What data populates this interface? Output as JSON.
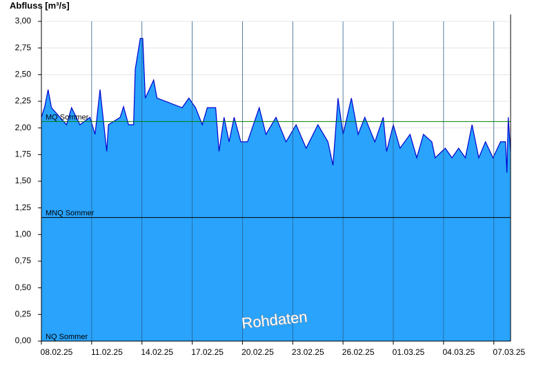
{
  "chart_data": {
    "type": "area",
    "y_label": "Abfluss [m³/s]",
    "watermark": "Rohdaten",
    "x": [
      0,
      0.2,
      0.4,
      0.6,
      1.5,
      1.8,
      2.3,
      2.9,
      3.2,
      3.5,
      3.9,
      4.0,
      4.7,
      4.9,
      5.2,
      5.5,
      5.6,
      5.9,
      6.05,
      6.2,
      6.7,
      6.9,
      8.4,
      8.8,
      9.2,
      9.6,
      9.9,
      10.4,
      10.6,
      10.9,
      11.2,
      11.5,
      11.9,
      12.3,
      13.0,
      13.4,
      14.0,
      14.6,
      15.2,
      15.8,
      16.5,
      17.1,
      17.4,
      17.7,
      18.0,
      18.5,
      18.9,
      19.3,
      19.9,
      20.4,
      20.6,
      21.0,
      21.4,
      22.0,
      22.4,
      22.8,
      23.3,
      23.5,
      24.1,
      24.5,
      24.9,
      25.3,
      25.7,
      26.1,
      26.5,
      26.95,
      27.4,
      27.7,
      27.78,
      27.86,
      28
    ],
    "series": [
      {
        "name": "Abfluss",
        "color": "#0000cc",
        "fill": "#29a3fc",
        "values": [
          2.1,
          2.2,
          2.36,
          2.19,
          2.03,
          2.19,
          2.03,
          2.1,
          1.94,
          2.36,
          1.78,
          2.03,
          2.1,
          2.2,
          2.03,
          2.03,
          2.55,
          2.84,
          2.84,
          2.28,
          2.45,
          2.28,
          2.19,
          2.28,
          2.19,
          2.03,
          2.19,
          2.19,
          1.78,
          2.1,
          1.87,
          2.1,
          1.87,
          1.87,
          2.19,
          1.94,
          2.1,
          1.87,
          2.03,
          1.81,
          2.03,
          1.87,
          1.65,
          2.28,
          1.94,
          2.28,
          1.94,
          2.1,
          1.87,
          2.1,
          1.78,
          2.03,
          1.81,
          1.94,
          1.72,
          1.94,
          1.87,
          1.72,
          1.81,
          1.72,
          1.81,
          1.72,
          2.03,
          1.72,
          1.87,
          1.72,
          1.87,
          1.87,
          1.58,
          2.1,
          1.78
        ]
      }
    ],
    "xlim": [
      0,
      28
    ],
    "xticks": [
      {
        "value": 0,
        "label": "08.02.25"
      },
      {
        "value": 3,
        "label": "11.02.25"
      },
      {
        "value": 6,
        "label": "14.02.25"
      },
      {
        "value": 9,
        "label": "17.02.25"
      },
      {
        "value": 12,
        "label": "20.02.25"
      },
      {
        "value": 15,
        "label": "23.02.25"
      },
      {
        "value": 18,
        "label": "26.02.25"
      },
      {
        "value": 21,
        "label": "01.03.25"
      },
      {
        "value": 24,
        "label": "04.03.25"
      },
      {
        "value": 27,
        "label": "07.03.25"
      }
    ],
    "ylim": [
      0,
      3
    ],
    "yticks": [
      {
        "value": 0,
        "label": "0,00"
      },
      {
        "value": 0.25,
        "label": "0,25"
      },
      {
        "value": 0.5,
        "label": "0,50"
      },
      {
        "value": 0.75,
        "label": "0,75"
      },
      {
        "value": 1,
        "label": "1,00"
      },
      {
        "value": 1.25,
        "label": "1,25"
      },
      {
        "value": 1.5,
        "label": "1,50"
      },
      {
        "value": 1.75,
        "label": "1,75"
      },
      {
        "value": 2,
        "label": "2,00"
      },
      {
        "value": 2.25,
        "label": "2,25"
      },
      {
        "value": 2.5,
        "label": "2,50"
      },
      {
        "value": 2.75,
        "label": "2,75"
      },
      {
        "value": 3,
        "label": "3,00"
      }
    ],
    "grid": true,
    "reference_lines": [
      {
        "label": "MQ Sommer",
        "value": 2.06,
        "color": "#008000"
      },
      {
        "label": "MNQ Sommer",
        "value": 1.16,
        "color": "#000000"
      },
      {
        "label": "NQ Sommer",
        "value": 0,
        "color": "#000000"
      }
    ]
  }
}
